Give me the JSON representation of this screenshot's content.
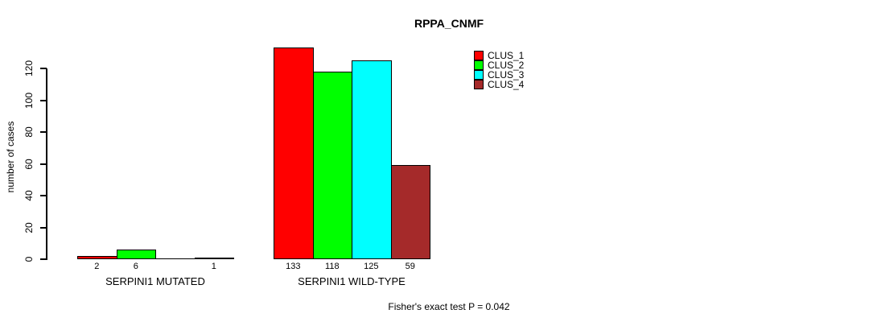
{
  "chart_data": {
    "type": "bar",
    "title": "RPPA_CNMF",
    "ylabel": "number of cases",
    "xlabel": "",
    "ylim": [
      0,
      133
    ],
    "yticks": [
      0,
      20,
      40,
      60,
      80,
      100,
      120
    ],
    "grid": false,
    "legend_position": "top-right-outside",
    "categories": [
      "SERPINI1 MUTATED",
      "SERPINI1 WILD-TYPE"
    ],
    "series": [
      {
        "name": "CLUS_1",
        "color": "#FF0000",
        "values": [
          2,
          133
        ]
      },
      {
        "name": "CLUS_2",
        "color": "#00FF00",
        "values": [
          6,
          118
        ]
      },
      {
        "name": "CLUS_3",
        "color": "#00FFFF",
        "values": [
          0,
          125
        ]
      },
      {
        "name": "CLUS_4",
        "color": "#A52A2A",
        "values": [
          1,
          59
        ]
      }
    ],
    "bar_value_labels": {
      "SERPINI1 MUTATED": [
        "2",
        "6",
        "",
        "1"
      ],
      "SERPINI1 WILD-TYPE": [
        "133",
        "118",
        "125",
        "59"
      ]
    },
    "annotation": "Fisher's exact test P = 0.042"
  }
}
